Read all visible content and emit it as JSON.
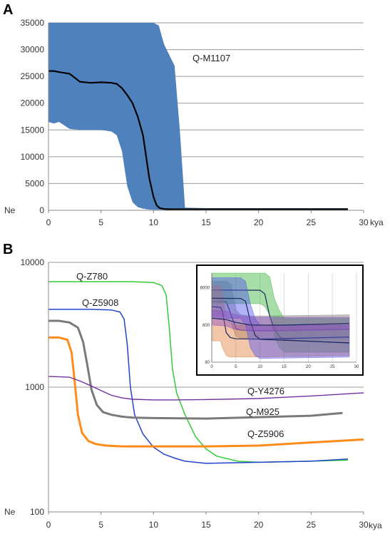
{
  "chart_data": [
    {
      "panel": "A",
      "type": "area",
      "y_label": "Ne",
      "x_unit": "kya",
      "xlim": [
        0,
        30
      ],
      "ylim": [
        0,
        35000
      ],
      "grid": true,
      "x_ticks": [
        0,
        5,
        10,
        15,
        20,
        25,
        30
      ],
      "y_ticks": [
        0,
        5000,
        10000,
        15000,
        20000,
        25000,
        30000,
        35000
      ],
      "colors": {
        "band": "#4f81bd",
        "median": "#000000"
      },
      "series": [
        {
          "name": "Q-M1107",
          "kind": "median",
          "x": [
            0,
            0.5,
            1,
            2,
            3,
            4,
            5,
            6,
            6.5,
            7,
            7.5,
            8,
            8.5,
            9,
            9.3,
            9.6,
            10,
            10.3,
            10.6,
            11,
            11.5,
            12,
            13,
            15,
            20,
            25,
            28.5
          ],
          "y": [
            26000,
            26000,
            25800,
            25500,
            24000,
            23800,
            23900,
            23800,
            23600,
            22800,
            21500,
            20000,
            17500,
            14000,
            10000,
            6000,
            2500,
            900,
            400,
            250,
            200,
            200,
            200,
            200,
            200,
            200,
            200
          ]
        },
        {
          "name": "",
          "kind": "band",
          "x": [
            0,
            0.5,
            1,
            2,
            3,
            4,
            5,
            6,
            6.5,
            7,
            7.5,
            8,
            8.5,
            9,
            9.5,
            10,
            10.5,
            11,
            11.5,
            12,
            12.5,
            13,
            15,
            20,
            25,
            28.5
          ],
          "upper": [
            35000,
            35000,
            35000,
            35000,
            35000,
            35000,
            35000,
            35000,
            35000,
            35000,
            35000,
            35000,
            35000,
            35000,
            35000,
            35000,
            34500,
            31000,
            29000,
            27000,
            15000,
            500,
            400,
            400,
            400,
            400
          ],
          "lower": [
            16500,
            16200,
            16500,
            15200,
            15000,
            15000,
            15000,
            14700,
            14000,
            11000,
            4500,
            1500,
            600,
            300,
            150,
            100,
            100,
            100,
            100,
            100,
            100,
            100,
            100,
            100,
            100,
            100
          ]
        }
      ]
    },
    {
      "panel": "B",
      "type": "line",
      "y_label": "Ne",
      "x_unit": "kya",
      "xlim": [
        0,
        30
      ],
      "ylim": [
        100,
        10000
      ],
      "y_scale": "log",
      "grid": true,
      "x_ticks": [
        0,
        5,
        10,
        15,
        20,
        25,
        30
      ],
      "y_ticks": [
        100,
        1000,
        10000
      ],
      "series": [
        {
          "name": "Q-Z780",
          "color": "#33cc33",
          "x": [
            0,
            5,
            8,
            10,
            10.8,
            11.2,
            11.5,
            11.8,
            12.2,
            13,
            14,
            15,
            16,
            18,
            20,
            25,
            28.5
          ],
          "y": [
            7000,
            7000,
            7000,
            6900,
            6500,
            5500,
            3000,
            1400,
            900,
            600,
            400,
            320,
            280,
            255,
            250,
            255,
            260
          ]
        },
        {
          "name": "Q-Z5908",
          "color": "#2244cc",
          "x": [
            0,
            2,
            4,
            6,
            6.8,
            7.2,
            7.5,
            7.8,
            8.2,
            9,
            10,
            11,
            12,
            13,
            15,
            20,
            25,
            28.5
          ],
          "y": [
            4200,
            4200,
            4200,
            4150,
            4000,
            3500,
            2200,
            1000,
            600,
            420,
            330,
            290,
            270,
            255,
            245,
            250,
            255,
            265
          ]
        },
        {
          "name": "",
          "color": "#7a7a7a",
          "x": [
            0,
            1,
            2,
            2.8,
            3.3,
            3.7,
            4.1,
            4.6,
            5.2,
            6,
            7,
            8,
            10,
            15,
            20,
            25,
            28
          ],
          "y": [
            3400,
            3400,
            3300,
            3000,
            2300,
            1500,
            950,
            720,
            630,
            600,
            580,
            570,
            565,
            560,
            575,
            590,
            620
          ]
        },
        {
          "name": "Q-M925",
          "color": "#7a7a7a",
          "x": [],
          "y": []
        },
        {
          "name": "",
          "color": "#ff8c1a",
          "x": [
            0,
            1,
            1.8,
            2.2,
            2.5,
            2.8,
            3.2,
            3.8,
            4.5,
            5.5,
            7,
            10,
            15,
            20,
            25,
            30
          ],
          "y": [
            2500,
            2500,
            2400,
            1900,
            1100,
            600,
            430,
            370,
            350,
            340,
            335,
            335,
            335,
            340,
            360,
            380
          ]
        },
        {
          "name": "Q-Z5906",
          "color": "#ff8c1a",
          "x": [],
          "y": []
        },
        {
          "name": "",
          "color": "#7030a0",
          "x": [
            0,
            2,
            3,
            4,
            5,
            6,
            7,
            8,
            10,
            12,
            15,
            20,
            25,
            30
          ],
          "y": [
            1220,
            1200,
            1120,
            1030,
            940,
            860,
            820,
            800,
            790,
            790,
            795,
            810,
            850,
            900
          ]
        },
        {
          "name": "Q-Y4276",
          "color": "#7030a0",
          "x": [],
          "y": []
        }
      ]
    },
    {
      "panel": "B-inset",
      "type": "area",
      "xlim": [
        0,
        30
      ],
      "ylim": [
        80,
        20000
      ],
      "y_scale": "log",
      "grid": true,
      "x_ticks": [
        0,
        5,
        10,
        15,
        20,
        25,
        30
      ],
      "y_ticks": [
        80,
        800,
        8000
      ],
      "bands": [
        {
          "color": "#808080",
          "x": [
            0,
            3,
            4,
            5,
            6,
            8,
            10,
            28.5
          ],
          "upper": [
            12000,
            12000,
            10000,
            2000,
            1500,
            1400,
            1400,
            1500
          ],
          "lower": [
            1400,
            1400,
            900,
            400,
            350,
            330,
            330,
            340
          ],
          "median": [
            3400,
            3400,
            1500,
            650,
            580,
            565,
            560,
            620
          ]
        },
        {
          "color": "#3cb33c",
          "x": [
            0,
            10,
            11,
            12,
            13,
            14,
            15,
            28.5
          ],
          "upper": [
            20000,
            20000,
            20000,
            16000,
            4000,
            2000,
            1200,
            1200
          ],
          "lower": [
            3000,
            3000,
            2500,
            1500,
            400,
            200,
            150,
            150
          ],
          "median": [
            7000,
            6900,
            5500,
            1400,
            600,
            400,
            320,
            260
          ]
        },
        {
          "color": "#e08040",
          "x": [
            0,
            1.8,
            2.2,
            3,
            3.8,
            5,
            10,
            28.5
          ],
          "upper": [
            9000,
            9000,
            6000,
            1200,
            900,
            800,
            800,
            800
          ],
          "lower": [
            300,
            300,
            200,
            120,
            110,
            110,
            110,
            120
          ],
          "median": [
            2500,
            2400,
            1900,
            500,
            370,
            340,
            335,
            380
          ]
        },
        {
          "color": "#5555ee",
          "x": [
            0,
            6,
            7,
            8,
            9,
            10,
            28.5
          ],
          "upper": [
            15000,
            15000,
            12000,
            3000,
            1200,
            800,
            800
          ],
          "lower": [
            1200,
            1200,
            800,
            200,
            120,
            100,
            110
          ],
          "median": [
            4200,
            4150,
            3500,
            1000,
            420,
            330,
            265
          ]
        },
        {
          "color": "#9050c0",
          "x": [
            0,
            3,
            5,
            8,
            15,
            28.5
          ],
          "upper": [
            2000,
            1900,
            1500,
            1300,
            1300,
            1300
          ],
          "lower": [
            800,
            750,
            600,
            550,
            550,
            600
          ],
          "median": [
            1220,
            1120,
            940,
            800,
            795,
            880
          ]
        }
      ]
    }
  ]
}
